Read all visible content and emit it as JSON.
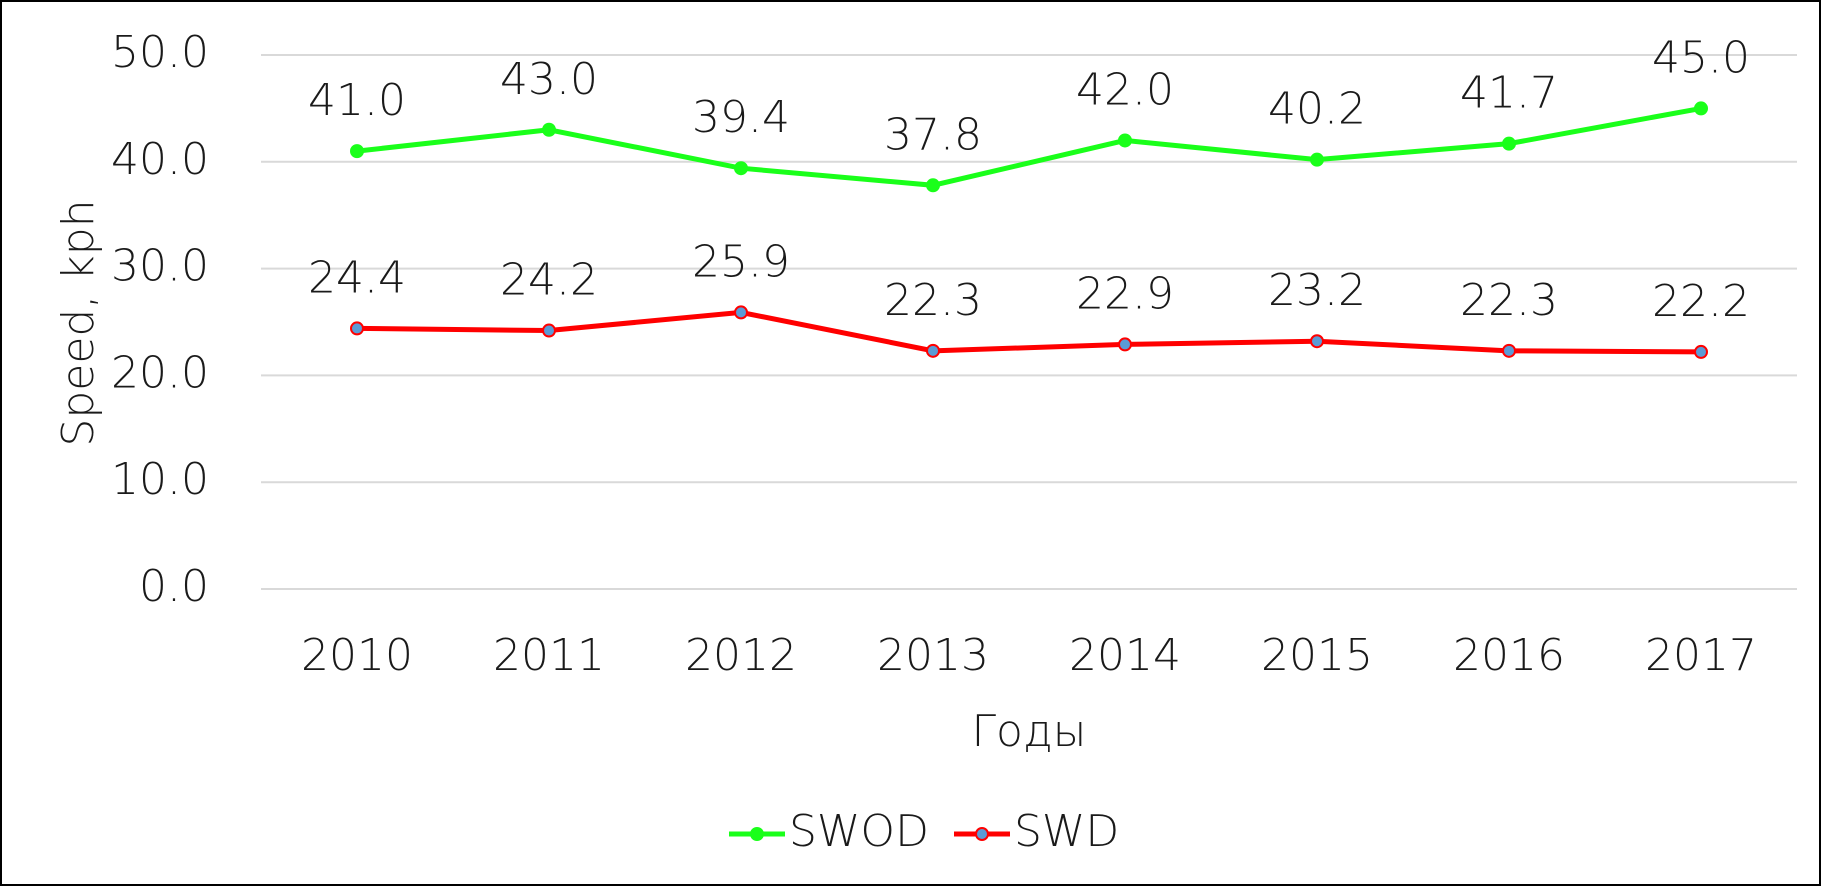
{
  "chart_data": {
    "type": "line",
    "xlabel": "Годы",
    "ylabel": "Speed, kph",
    "categories": [
      "2010",
      "2011",
      "2012",
      "2013",
      "2014",
      "2015",
      "2016",
      "2017"
    ],
    "series": [
      {
        "name": "SWOD",
        "color": "#1aff1a",
        "marker_color": "#1aff1a",
        "values": [
          41.0,
          43.0,
          39.4,
          37.8,
          42.0,
          40.2,
          41.7,
          45.0
        ],
        "value_labels": [
          "41.0",
          "43.0",
          "39.4",
          "37.8",
          "42.0",
          "40.2",
          "41.7",
          "45.0"
        ]
      },
      {
        "name": "SWD",
        "color": "#ff0000",
        "marker_color": "#5b9bd5",
        "values": [
          24.4,
          24.2,
          25.9,
          22.3,
          22.9,
          23.2,
          22.3,
          22.2
        ],
        "value_labels": [
          "24.4",
          "24.2",
          "25.9",
          "22.3",
          "22.9",
          "23.2",
          "22.3",
          "22.2"
        ]
      }
    ],
    "ylim": [
      0,
      50
    ],
    "yticks": [
      {
        "value": 0,
        "label": "0.0"
      },
      {
        "value": 10,
        "label": "10.0"
      },
      {
        "value": 20,
        "label": "20.0"
      },
      {
        "value": 30,
        "label": "30.0"
      },
      {
        "value": 40,
        "label": "40.0"
      },
      {
        "value": 50,
        "label": "50.0"
      }
    ],
    "grid": true,
    "legend": "bottom"
  }
}
